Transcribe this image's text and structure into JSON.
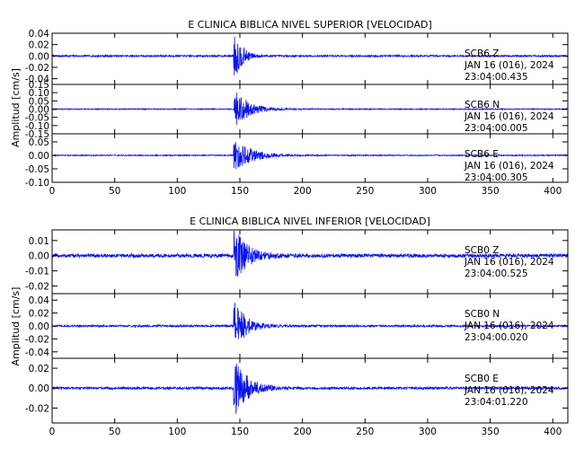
{
  "colors": {
    "trace": "#0a14ee",
    "axis": "#000000",
    "background": "#ffffff"
  },
  "chart_data": [
    {
      "type": "line",
      "title": "E CLINICA BIBLICA NIVEL SUPERIOR [VELOCIDAD]",
      "ylabel": "Amplitud [cm/s]",
      "xlim": [
        0,
        412
      ],
      "xticks": [
        "0",
        "50",
        "100",
        "150",
        "200",
        "250",
        "300",
        "350",
        "400"
      ],
      "grid": false,
      "panels": [
        {
          "station": "SCB6",
          "component": "Z",
          "date": "JAN 16 (016), 2024",
          "time": "23:04:00.435",
          "ylim": [
            -0.05,
            0.04
          ],
          "yticks": [
            "0.04",
            "0.02",
            "0.00",
            "-0.02",
            "-0.04"
          ],
          "noise_amplitude": 0.0015,
          "peak_time": 147,
          "peak_amplitude": 0.035,
          "coda_decay": 6
        },
        {
          "station": "SCB6",
          "component": "N",
          "date": "JAN 16 (016), 2024",
          "time": "23:04:00.005",
          "ylim": [
            -0.15,
            0.15
          ],
          "yticks": [
            "0.15",
            "0.10",
            "0.05",
            "0.00",
            "-0.05",
            "-0.10",
            "-0.15"
          ],
          "noise_amplitude": 0.003,
          "peak_time": 147,
          "peak_amplitude": 0.11,
          "coda_decay": 11
        },
        {
          "station": "SCB6",
          "component": "E",
          "date": "JAN 16 (016), 2024",
          "time": "23:04:00.305",
          "ylim": [
            -0.1,
            0.08
          ],
          "yticks": [
            "0.05",
            "0.00",
            "-0.05",
            "-0.10"
          ],
          "noise_amplitude": 0.002,
          "peak_time": 147,
          "peak_amplitude": 0.06,
          "coda_decay": 13
        }
      ]
    },
    {
      "type": "line",
      "title": "E CLINICA BIBLICA NIVEL INFERIOR [VELOCIDAD]",
      "ylabel": "Amplitud [cm/s]",
      "xlim": [
        0,
        412
      ],
      "xticks": [
        "0",
        "50",
        "100",
        "150",
        "200",
        "250",
        "300",
        "350",
        "400"
      ],
      "grid": false,
      "panels": [
        {
          "station": "SCB0",
          "component": "Z",
          "date": "JAN 16 (016), 2024",
          "time": "23:04:00.525",
          "ylim": [
            -0.025,
            0.017
          ],
          "yticks": [
            "0.01",
            "0.00",
            "-0.01",
            "-0.02"
          ],
          "noise_amplitude": 0.0012,
          "peak_time": 147,
          "peak_amplitude": 0.016,
          "coda_decay": 10
        },
        {
          "station": "SCB0",
          "component": "N",
          "date": "JAN 16 (016), 2024",
          "time": "23:04:00.020",
          "ylim": [
            -0.05,
            0.05
          ],
          "yticks": [
            "0.04",
            "0.02",
            "0.00",
            "-0.02",
            "-0.04"
          ],
          "noise_amplitude": 0.0015,
          "peak_time": 147,
          "peak_amplitude": 0.035,
          "coda_decay": 9
        },
        {
          "station": "SCB0",
          "component": "E",
          "date": "JAN 16 (016), 2024",
          "time": "23:04:01.220",
          "ylim": [
            -0.035,
            0.03
          ],
          "yticks": [
            "0.02",
            "0.00",
            "-0.02"
          ],
          "noise_amplitude": 0.0012,
          "peak_time": 147,
          "peak_amplitude": 0.027,
          "coda_decay": 10
        }
      ]
    }
  ]
}
